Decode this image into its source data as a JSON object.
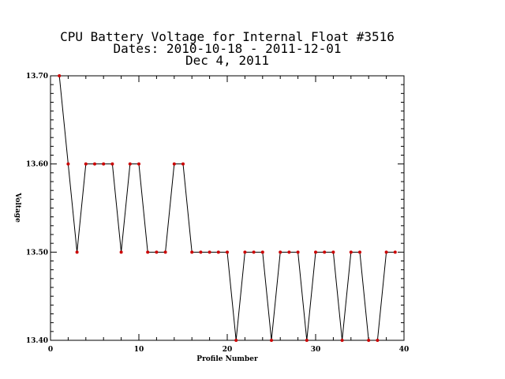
{
  "chart_data": {
    "type": "line",
    "title_lines": [
      "CPU Battery Voltage for Internal Float #3516",
      "Dates:  2010-10-18 -  2011-12-01",
      "Dec  4, 2011"
    ],
    "xlabel": "Profile Number",
    "ylabel": "Voltage",
    "xlim": [
      0,
      40
    ],
    "ylim": [
      13.4,
      13.7
    ],
    "x_ticks": [
      0,
      10,
      20,
      30,
      40
    ],
    "x_tick_labels": [
      "0",
      "10",
      "20",
      "30",
      "40"
    ],
    "y_ticks": [
      13.4,
      13.5,
      13.6,
      13.7
    ],
    "y_tick_labels": [
      "13.40",
      "13.50",
      "13.60",
      "13.70"
    ],
    "grid": false,
    "line_color": "#000000",
    "marker_color": "#cc0000",
    "x": [
      1,
      2,
      3,
      4,
      5,
      6,
      7,
      8,
      9,
      10,
      11,
      12,
      13,
      14,
      15,
      16,
      17,
      18,
      19,
      20,
      21,
      22,
      23,
      24,
      25,
      26,
      27,
      28,
      29,
      30,
      31,
      32,
      33,
      34,
      35,
      36,
      37,
      38,
      39
    ],
    "y": [
      13.7,
      13.6,
      13.5,
      13.6,
      13.6,
      13.6,
      13.6,
      13.5,
      13.6,
      13.6,
      13.5,
      13.5,
      13.5,
      13.6,
      13.6,
      13.5,
      13.5,
      13.5,
      13.5,
      13.5,
      13.4,
      13.5,
      13.5,
      13.5,
      13.4,
      13.5,
      13.5,
      13.5,
      13.4,
      13.5,
      13.5,
      13.5,
      13.4,
      13.5,
      13.5,
      13.4,
      13.4,
      13.5,
      13.5
    ]
  }
}
